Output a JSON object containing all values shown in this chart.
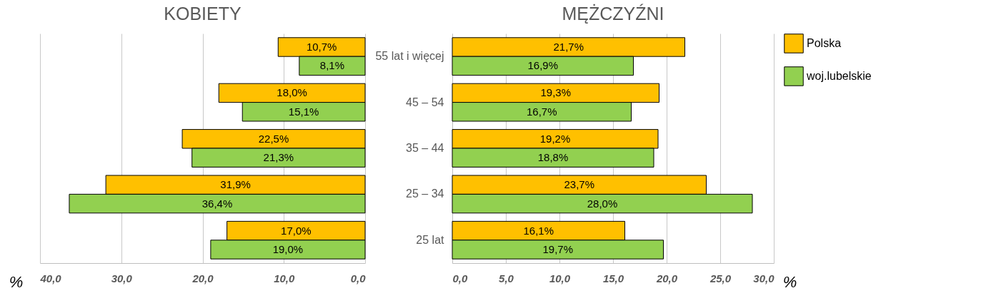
{
  "chart_data": [
    {
      "type": "bar",
      "orientation": "horizontal",
      "title": "KOBIETY",
      "xlabel": "%",
      "categories": [
        null,
        null,
        null,
        null,
        null
      ],
      "tick_labels": "x",
      "grid": "x",
      "xlim": [
        40,
        0
      ],
      "xticks": [
        {
          "value": 40,
          "label": "40,0"
        },
        {
          "value": 30,
          "label": "30,0"
        },
        {
          "value": 20,
          "label": "20,0"
        },
        {
          "value": 10,
          "label": "10,0"
        },
        {
          "value": 0,
          "label": "0,0"
        }
      ],
      "series": [
        {
          "color": "#ffc000",
          "values": [
            10.7,
            18.0,
            22.5,
            31.9,
            17.0
          ],
          "value_labels": [
            "10,7%",
            "18,0%",
            "22,5%",
            "31,9%",
            "17,0%"
          ]
        },
        {
          "color": "#92d050",
          "values": [
            8.1,
            15.1,
            21.3,
            36.4,
            19.0
          ],
          "value_labels": [
            "8,1%",
            "15,1%",
            "21,3%",
            "36,4%",
            "19,0%"
          ]
        }
      ]
    },
    {
      "type": "bar",
      "orientation": "horizontal",
      "title": "MĘŻCZYŹNI",
      "xlabel": "%",
      "categories": [
        "55 lat i więcej",
        "45 – 54",
        "35 – 44",
        "25 – 34",
        "25 lat"
      ],
      "grid": "x",
      "legend": "top right",
      "xlim": [
        0,
        30
      ],
      "xticks": [
        {
          "value": 0,
          "label": "0,0"
        },
        {
          "value": 5,
          "label": "5,0"
        },
        {
          "value": 10,
          "label": "10,0"
        },
        {
          "value": 15,
          "label": "15,0"
        },
        {
          "value": 20,
          "label": "20,0"
        },
        {
          "value": 25,
          "label": "25,0"
        },
        {
          "value": 30,
          "label": "30,0"
        }
      ],
      "series": [
        {
          "name": "Polska",
          "color": "#ffc000",
          "values": [
            21.7,
            19.3,
            19.2,
            23.7,
            16.1
          ],
          "value_labels": [
            "21,7%",
            "19,3%",
            "19,2%",
            "23,7%",
            "16,1%"
          ]
        },
        {
          "name": "woj.lubelskie",
          "color": "#92d050",
          "values": [
            16.9,
            16.7,
            18.8,
            28.0,
            19.7
          ],
          "value_labels": [
            "16,9%",
            "16,7%",
            "18,8%",
            "28,0%",
            "19,7%"
          ]
        }
      ]
    }
  ]
}
